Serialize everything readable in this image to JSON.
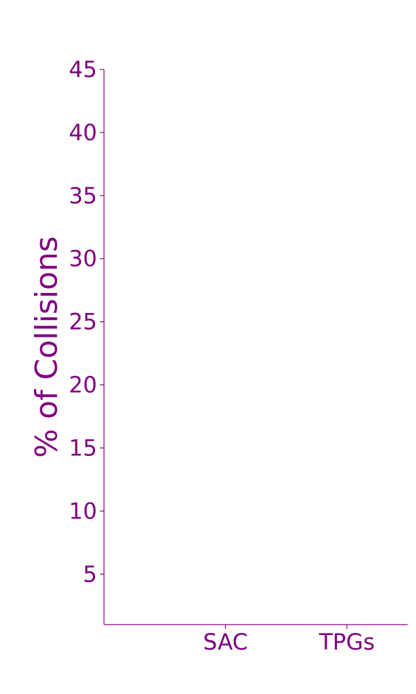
{
  "chart_data": {
    "type": "bar",
    "title": "",
    "xlabel": "",
    "ylabel": "% of Collisions",
    "categories": [
      "SAC",
      "TPGs"
    ],
    "values": [
      null,
      null
    ],
    "ylim": [
      1,
      45
    ],
    "yticks": [
      5,
      10,
      15,
      20,
      25,
      30,
      35,
      40,
      45
    ],
    "grid": false,
    "legend": "none",
    "axis_color": "#800080",
    "text_color": "#800080"
  }
}
